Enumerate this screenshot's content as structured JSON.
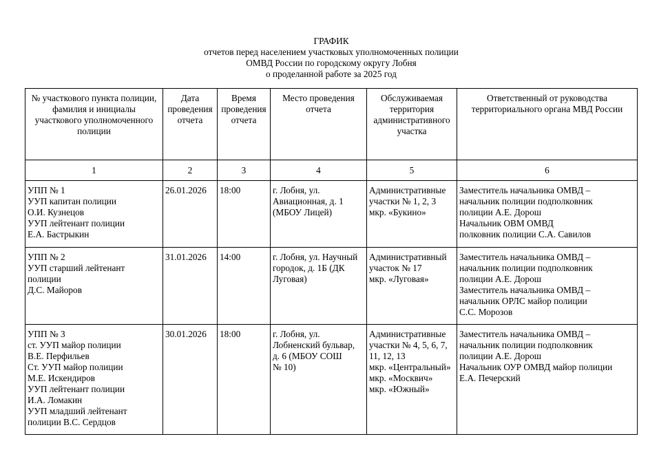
{
  "title": {
    "line1": "ГРАФИК",
    "line2": "отчетов перед населением участковых уполномоченных полиции",
    "line3": "ОМВД России по городскому округу Лобня",
    "line4": "о проделанной работе за 2025 год"
  },
  "table": {
    "headers": [
      "№ участкового пункта полиции,\nфамилия и инициалы\nучасткового уполномоченного\nполиции",
      "Дата\nпроведения\nотчета",
      "Время\nпроведения\nотчета",
      "Место проведения\nотчета",
      "Обслуживаемая\nтерритория\nадминистративного\nучастка",
      "Ответственный от руководства\nтерриториального органа МВД России"
    ],
    "column_numbers": [
      "1",
      "2",
      "3",
      "4",
      "5",
      "6"
    ],
    "rows": [
      {
        "upp": "УПП № 1\nУУП капитан полиции\nО.И. Кузнецов\nУУП лейтенант полиции\nЕ.А. Бастрыкин",
        "date": "26.01.2026",
        "time": "18:00",
        "place": "г. Лобня, ул.\nАвиационная, д. 1\n(МБОУ Лицей)",
        "territory": "Административные\nучастки № 1, 2, 3\nмкр. «Букино»",
        "responsible": "Заместитель начальника ОМВД –\nначальник полиции подполковник\nполиции А.Е. Дорош\nНачальник ОВМ ОМВД\nполковник полиции С.А. Савилов"
      },
      {
        "upp": "УПП № 2\nУУП старший лейтенант\nполиции\nД.С. Майоров",
        "date": "31.01.2026",
        "time": "14:00",
        "place": "г. Лобня, ул. Научный\nгородок, д. 1Б (ДК\nЛуговая)",
        "territory": "Административный\nучасток № 17\nмкр. «Луговая»",
        "responsible": "Заместитель начальника ОМВД –\nначальник полиции подполковник\nполиции А.Е. Дорош\nЗаместитель начальника ОМВД –\nначальник ОРЛС майор полиции\nС.С. Морозов"
      },
      {
        "upp": "УПП № 3\nст. УУП майор полиции\nВ.Е. Перфильев\nСт. УУП майор полиции\nМ.Е. Искендиров\nУУП лейтенант полиции\nИ.А. Ломакин\nУУП младший лейтенант\nполиции В.С. Сердцов",
        "date": "30.01.2026",
        "time": "18:00",
        "place": "г. Лобня, ул.\nЛобненский бульвар,\nд. 6 (МБОУ СОШ\n№ 10)",
        "territory": "Административные\nучастки № 4, 5, 6, 7,\n11, 12, 13\nмкр. «Центральный»\nмкр. «Москвич»\nмкр. «Южный»",
        "responsible": "Заместитель начальника ОМВД –\nначальник полиции подполковник\nполиции А.Е. Дорош\nНачальник ОУР ОМВД майор полиции\nЕ.А. Печерский"
      }
    ]
  }
}
